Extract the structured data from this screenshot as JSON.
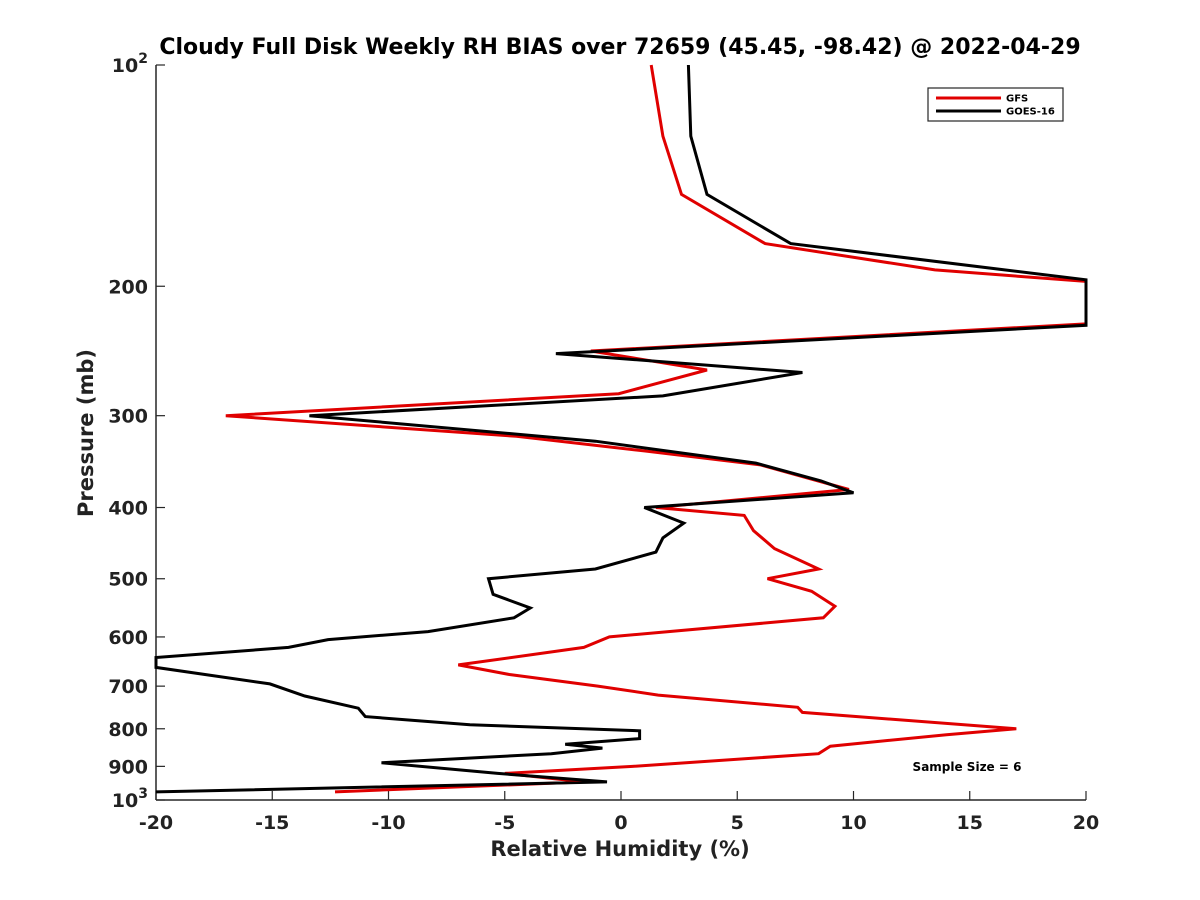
{
  "chart_data": {
    "type": "line",
    "title": "Cloudy Full Disk Weekly RH BIAS over 72659 (45.45, -98.42) @ 2022-04-29",
    "xlabel": "Relative Humidity (%)",
    "ylabel": "Pressure (mb)",
    "xlim": [
      -20,
      20
    ],
    "ylim": [
      100,
      1000
    ],
    "y_scale": "log",
    "y_reversed": true,
    "grid": false,
    "legend_position": "top-right",
    "x_ticks": [
      "-20",
      "-15",
      "-10",
      "-5",
      "0",
      "5",
      "10",
      "15",
      "20"
    ],
    "y_ticks": [
      {
        "value": 100,
        "base": "10",
        "exp": "2"
      },
      {
        "value": 200,
        "label": "200"
      },
      {
        "value": 300,
        "label": "300"
      },
      {
        "value": 400,
        "label": "400"
      },
      {
        "value": 500,
        "label": "500"
      },
      {
        "value": 600,
        "label": "600"
      },
      {
        "value": 700,
        "label": "700"
      },
      {
        "value": 800,
        "label": "800"
      },
      {
        "value": 900,
        "label": "900"
      },
      {
        "value": 1000,
        "base": "10",
        "exp": "3"
      }
    ],
    "annotation": "Sample Size = 6",
    "series": [
      {
        "name": "GFS",
        "color": "#e00000",
        "points": [
          [
            1.3,
            100
          ],
          [
            1.8,
            125
          ],
          [
            2.6,
            150
          ],
          [
            6.2,
            175
          ],
          [
            13.5,
            190
          ],
          [
            20,
            197
          ],
          [
            20,
            225
          ],
          [
            -1.3,
            245
          ],
          [
            3.7,
            260
          ],
          [
            -0.1,
            280
          ],
          [
            -17.0,
            300
          ],
          [
            -4.5,
            320
          ],
          [
            1.0,
            335
          ],
          [
            6.0,
            350
          ],
          [
            9.8,
            378
          ],
          [
            1.5,
            400
          ],
          [
            5.3,
            410
          ],
          [
            5.7,
            430
          ],
          [
            6.6,
            455
          ],
          [
            8.5,
            485
          ],
          [
            6.3,
            500
          ],
          [
            8.2,
            520
          ],
          [
            9.2,
            545
          ],
          [
            8.7,
            565
          ],
          [
            -0.5,
            600
          ],
          [
            -1.6,
            620
          ],
          [
            -7.0,
            655
          ],
          [
            -4.8,
            675
          ],
          [
            -1.0,
            700
          ],
          [
            1.6,
            720
          ],
          [
            7.6,
            748
          ],
          [
            7.8,
            760
          ],
          [
            17.0,
            800
          ],
          [
            14.0,
            815
          ],
          [
            9.0,
            845
          ],
          [
            8.5,
            865
          ],
          [
            0.5,
            900
          ],
          [
            -5.0,
            920
          ],
          [
            -1.6,
            945
          ],
          [
            -12.3,
            975
          ]
        ]
      },
      {
        "name": "GOES-16",
        "color": "#000000",
        "points": [
          [
            2.9,
            100
          ],
          [
            3.0,
            125
          ],
          [
            3.7,
            150
          ],
          [
            7.3,
            175
          ],
          [
            16.5,
            190
          ],
          [
            20,
            196
          ],
          [
            20,
            226
          ],
          [
            -2.8,
            247
          ],
          [
            7.8,
            262
          ],
          [
            1.8,
            282
          ],
          [
            -13.4,
            300
          ],
          [
            -1.1,
            325
          ],
          [
            5.8,
            348
          ],
          [
            8.6,
            368
          ],
          [
            10.0,
            382
          ],
          [
            1.0,
            400
          ],
          [
            2.7,
            420
          ],
          [
            1.8,
            440
          ],
          [
            1.5,
            460
          ],
          [
            -1.1,
            485
          ],
          [
            -5.7,
            500
          ],
          [
            -5.5,
            525
          ],
          [
            -3.9,
            548
          ],
          [
            -4.6,
            565
          ],
          [
            -8.3,
            590
          ],
          [
            -12.6,
            605
          ],
          [
            -14.3,
            620
          ],
          [
            -20,
            640
          ],
          [
            -20,
            660
          ],
          [
            -15.1,
            695
          ],
          [
            -13.6,
            722
          ],
          [
            -11.3,
            750
          ],
          [
            -11.0,
            770
          ],
          [
            -6.5,
            790
          ],
          [
            0.8,
            805
          ],
          [
            0.8,
            825
          ],
          [
            -2.4,
            840
          ],
          [
            -0.8,
            850
          ],
          [
            -3.0,
            865
          ],
          [
            -10.3,
            890
          ],
          [
            -5.3,
            920
          ],
          [
            -0.6,
            945
          ],
          [
            -20,
            975
          ]
        ]
      }
    ]
  }
}
